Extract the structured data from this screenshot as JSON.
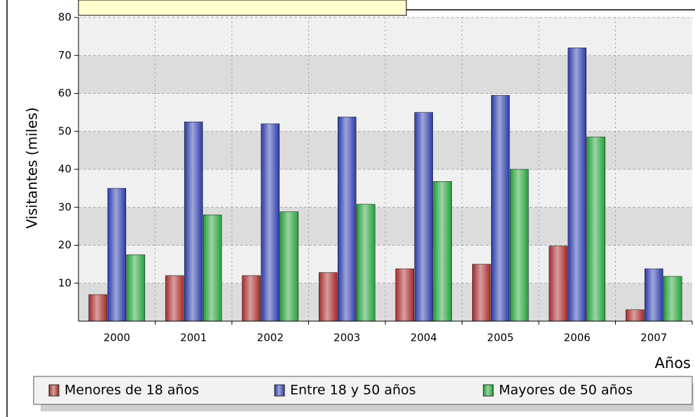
{
  "chart_data": {
    "type": "bar",
    "y_label": "Visitantes (miles)",
    "x_label": "Años",
    "categories": [
      "2000",
      "2001",
      "2002",
      "2003",
      "2004",
      "2005",
      "2006",
      "2007"
    ],
    "series": [
      {
        "name": "Menores de 18 años",
        "color": "#a52a2a",
        "values": [
          7,
          12,
          12,
          12.8,
          13.8,
          15,
          19.8,
          3
        ]
      },
      {
        "name": "Entre 18 y 50 años",
        "color": "#2a3aa8",
        "values": [
          35,
          52.5,
          52,
          53.8,
          55,
          59.5,
          72,
          13.8
        ]
      },
      {
        "name": "Mayores de 50 años",
        "color": "#22a038",
        "values": [
          17.5,
          28,
          28.8,
          30.8,
          36.8,
          40,
          48.5,
          11.8
        ]
      }
    ],
    "ylim": [
      0,
      80
    ],
    "yticks": [
      10,
      20,
      30,
      40,
      50,
      60,
      70,
      80
    ],
    "grid": true,
    "legend": "bottom"
  }
}
